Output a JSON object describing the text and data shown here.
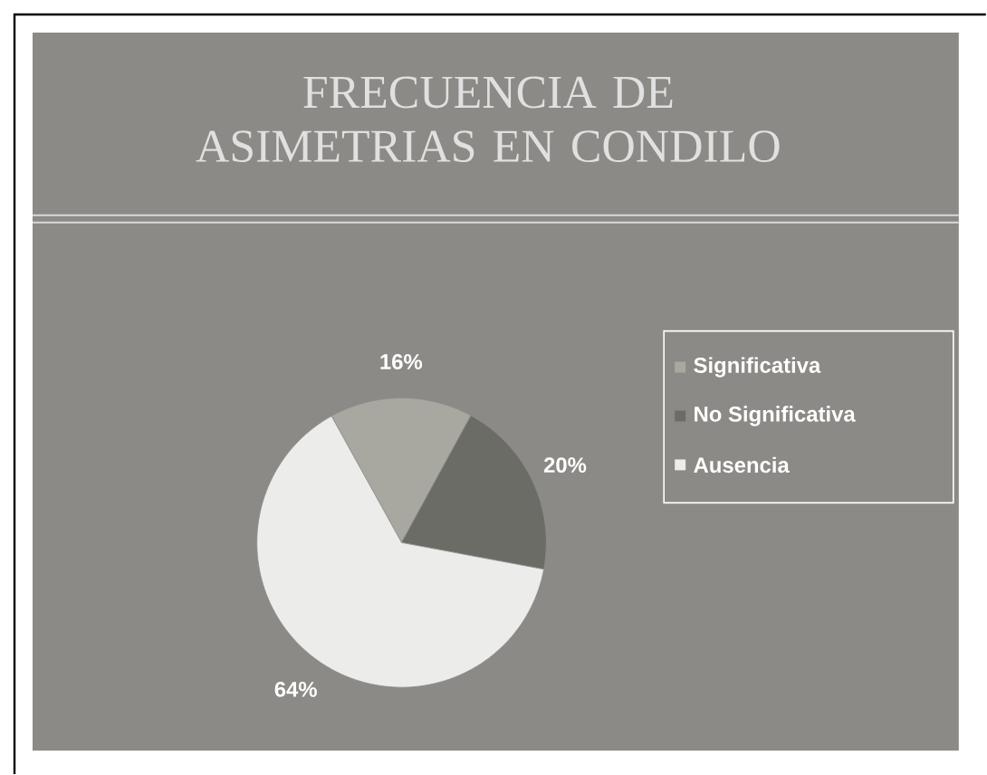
{
  "chart_data": {
    "type": "pie",
    "title": "FRECUENCIA DE ASIMETRIAS EN CONDILO",
    "categories": [
      "Significativa",
      "No Significativa",
      "Ausencia"
    ],
    "values": [
      16,
      20,
      64
    ],
    "colors": [
      "#a8a8a0",
      "#6c6c66",
      "#ececea"
    ],
    "value_labels": [
      "16%",
      "20%",
      "64%"
    ],
    "legend": "right"
  }
}
